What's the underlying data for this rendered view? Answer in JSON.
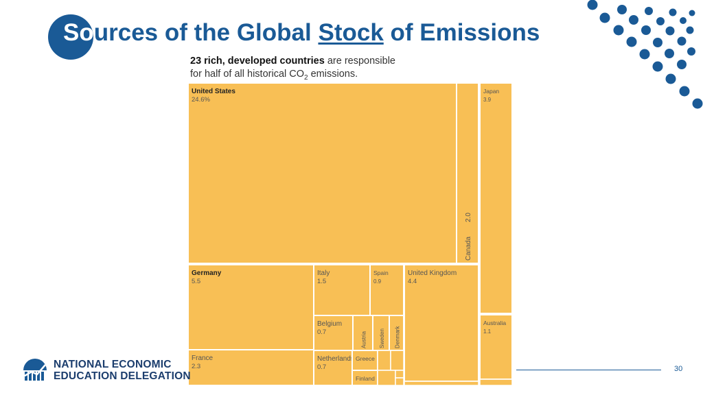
{
  "slide": {
    "title_prefix": "So",
    "title_middle": "urces of the Global ",
    "title_stock": "Stock",
    "title_suffix": " of Emissions",
    "page_number": "30",
    "org_line1": "NATIONAL ECONOMIC",
    "org_line2": "EDUCATION DELEGATION",
    "colors": {
      "brand_blue": "#1a5a96",
      "cell_fill": "#f8bf55",
      "cell_border": "#ffffff"
    }
  },
  "chart_data": {
    "type": "treemap",
    "subtitle_bold": "23 rich, developed countries",
    "subtitle_rest1": " are responsible",
    "subtitle_line2_pre": "for half of all historical CO",
    "subtitle_sub": "2",
    "subtitle_line2_post": " emissions.",
    "unit": "percent of global historical CO2 emissions",
    "cells": [
      {
        "name": "United States",
        "value": "24.6%",
        "bold": true
      },
      {
        "name": "Canada",
        "value": "2.0"
      },
      {
        "name": "Japan",
        "value": "3.9"
      },
      {
        "name": "Germany",
        "value": "5.5",
        "bold": true
      },
      {
        "name": "France",
        "value": "2.3"
      },
      {
        "name": "Italy",
        "value": "1.5"
      },
      {
        "name": "Spain",
        "value": "0.9"
      },
      {
        "name": "United Kingdom",
        "value": "4.4"
      },
      {
        "name": "Belgium",
        "value": "0.7"
      },
      {
        "name": "Austria",
        "value": ""
      },
      {
        "name": "Sweden",
        "value": ""
      },
      {
        "name": "Denmark",
        "value": ""
      },
      {
        "name": "Netherlands",
        "value": "0.7"
      },
      {
        "name": "Greece",
        "value": ""
      },
      {
        "name": "Finland",
        "value": ""
      },
      {
        "name": "Australia",
        "value": "1.1"
      }
    ]
  }
}
